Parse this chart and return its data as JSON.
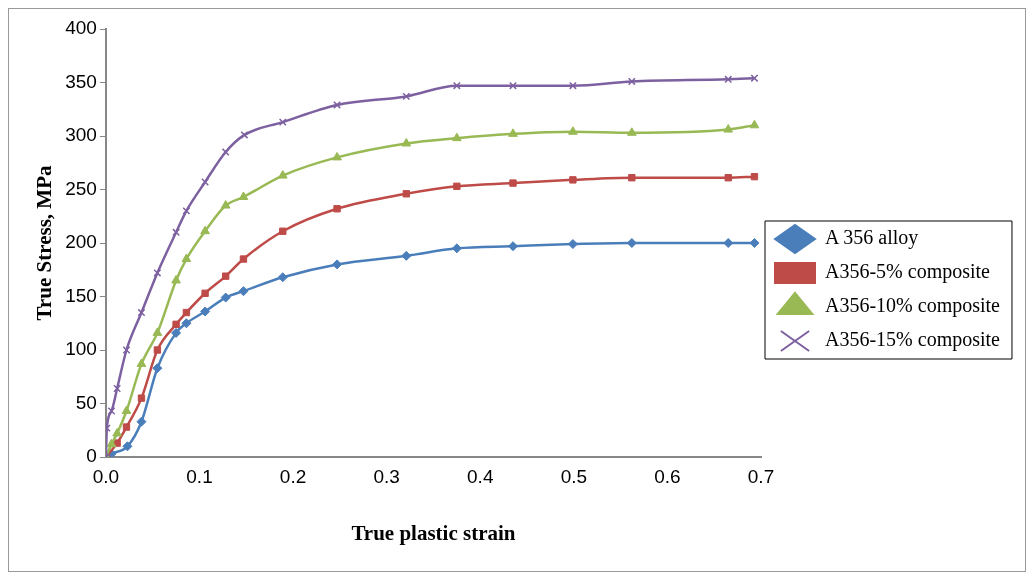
{
  "chart_data": {
    "type": "line",
    "xlabel": "True plastic strain",
    "ylabel": "True Stress, MPa",
    "xlim": [
      0,
      0.7
    ],
    "xticks": [
      {
        "value": 0,
        "label": "0.0"
      },
      0.1,
      0.2,
      0.3,
      0.4,
      0.5,
      0.6,
      0.7
    ],
    "ylim": [
      0,
      400
    ],
    "yticks": [
      0,
      50,
      100,
      150,
      200,
      250,
      300,
      350,
      400
    ],
    "grid": false,
    "legend": "right",
    "line_style": "solid",
    "series": [
      {
        "name": "A 356 alloy",
        "color": "#4a7ebb",
        "marker": "diamond",
        "x": [
          0,
          0.006,
          0.023,
          0.038,
          0.055,
          0.075,
          0.086,
          0.106,
          0.128,
          0.147,
          0.189,
          0.247,
          0.321,
          0.375,
          0.435,
          0.499,
          0.562,
          0.665,
          0.693
        ],
        "values": [
          0,
          3,
          10,
          33,
          83,
          116,
          125,
          136,
          149,
          155,
          168,
          180,
          188,
          195,
          197,
          199,
          200,
          200,
          200
        ]
      },
      {
        "name": "A356-5% composite",
        "color": "#be4b48",
        "marker": "square",
        "x": [
          0,
          0.012,
          0.022,
          0.038,
          0.055,
          0.075,
          0.086,
          0.106,
          0.128,
          0.147,
          0.189,
          0.247,
          0.321,
          0.375,
          0.435,
          0.499,
          0.562,
          0.665,
          0.693
        ],
        "values": [
          0,
          13,
          28,
          55,
          100,
          124,
          135,
          153,
          169,
          185,
          211,
          232,
          246,
          253,
          256,
          259,
          261,
          261,
          262
        ]
      },
      {
        "name": "A356-10% composite",
        "color": "#98b954",
        "marker": "triangle",
        "x": [
          0,
          0.006,
          0.012,
          0.022,
          0.038,
          0.055,
          0.075,
          0.086,
          0.106,
          0.128,
          0.147,
          0.189,
          0.247,
          0.321,
          0.375,
          0.435,
          0.499,
          0.562,
          0.665,
          0.693
        ],
        "values": [
          0,
          12,
          22,
          43,
          87,
          116,
          165,
          185,
          211,
          235,
          243,
          263,
          280,
          293,
          298,
          302,
          304,
          303,
          306,
          310
        ]
      },
      {
        "name": "A356-15% composite",
        "color": "#7d60a0",
        "marker": "cross",
        "x": [
          0,
          0.001,
          0.006,
          0.012,
          0.022,
          0.038,
          0.055,
          0.075,
          0.086,
          0.106,
          0.128,
          0.148,
          0.189,
          0.247,
          0.321,
          0.375,
          0.435,
          0.499,
          0.562,
          0.665,
          0.693
        ],
        "values": [
          0,
          27,
          43,
          64,
          100,
          135,
          172,
          210,
          230,
          257,
          285,
          301,
          313,
          329,
          337,
          347,
          347,
          347,
          351,
          353,
          354
        ]
      }
    ]
  }
}
